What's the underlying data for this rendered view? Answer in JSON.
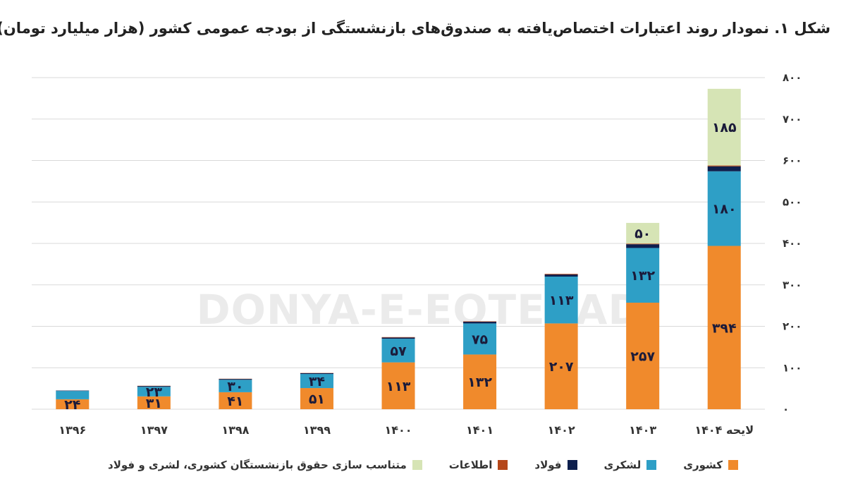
{
  "chart_data": {
    "type": "bar",
    "stacked": true,
    "title": "شکل ۱. نمودار روند اعتبارات اختصاص‌یافته به صندوق‌های بازنشستگی از بودجه عمومی کشور (هزار میلیارد تومان)",
    "watermark": "DONYA-E-EQTESAD",
    "categories": [
      "۱۳۹۶",
      "۱۳۹۷",
      "۱۳۹۸",
      "۱۳۹۹",
      "۱۴۰۰",
      "۱۴۰۱",
      "۱۴۰۲",
      "۱۴۰۳",
      "لایحه ۱۴۰۴"
    ],
    "ylim": [
      0,
      800
    ],
    "yticks": [
      0,
      100,
      200,
      300,
      400,
      500,
      600,
      700,
      800
    ],
    "ytick_labels": [
      "۰",
      "۱۰۰",
      "۲۰۰",
      "۳۰۰",
      "۴۰۰",
      "۵۰۰",
      "۶۰۰",
      "۷۰۰",
      "۸۰۰"
    ],
    "grid": true,
    "legend_position": "bottom",
    "series": [
      {
        "name": "کشوری",
        "color": "#f08a2c",
        "values": [
          24,
          31,
          41,
          51,
          113,
          132,
          207,
          257,
          394
        ],
        "labels": [
          "۲۴",
          "۳۱",
          "۴۱",
          "۵۱",
          "۱۱۳",
          "۱۳۲",
          "۲۰۷",
          "۲۵۷",
          "۳۹۴"
        ]
      },
      {
        "name": "لشکری",
        "color": "#2e9fc6",
        "values": [
          20,
          23,
          30,
          34,
          57,
          75,
          113,
          132,
          180
        ],
        "labels": [
          "",
          "۲۳",
          "۳۰",
          "۳۴",
          "۵۷",
          "۷۵",
          "۱۱۳",
          "۱۳۲",
          "۱۸۰"
        ]
      },
      {
        "name": "فولاد",
        "color": "#0e1f4d",
        "values": [
          1,
          2,
          2,
          2,
          3,
          4,
          5,
          9,
          12
        ],
        "labels": [
          "",
          "",
          "",
          "",
          "",
          "",
          "",
          "",
          ""
        ]
      },
      {
        "name": "اطلاعات",
        "color": "#b5471a",
        "values": [
          0,
          0.5,
          0.5,
          0.5,
          1,
          1,
          1.5,
          1.5,
          2
        ],
        "labels": [
          "",
          "",
          "",
          "",
          "",
          "",
          "",
          "",
          ""
        ]
      },
      {
        "name": "متناسب سازی حقوق بازنشستگان کشوری، لشری و فولاد",
        "color": "#d6e4b5",
        "values": [
          0,
          0,
          0,
          0,
          0,
          0,
          0,
          50,
          185
        ],
        "labels": [
          "",
          "",
          "",
          "",
          "",
          "",
          "",
          "۵۰",
          "۱۸۵"
        ]
      }
    ]
  }
}
